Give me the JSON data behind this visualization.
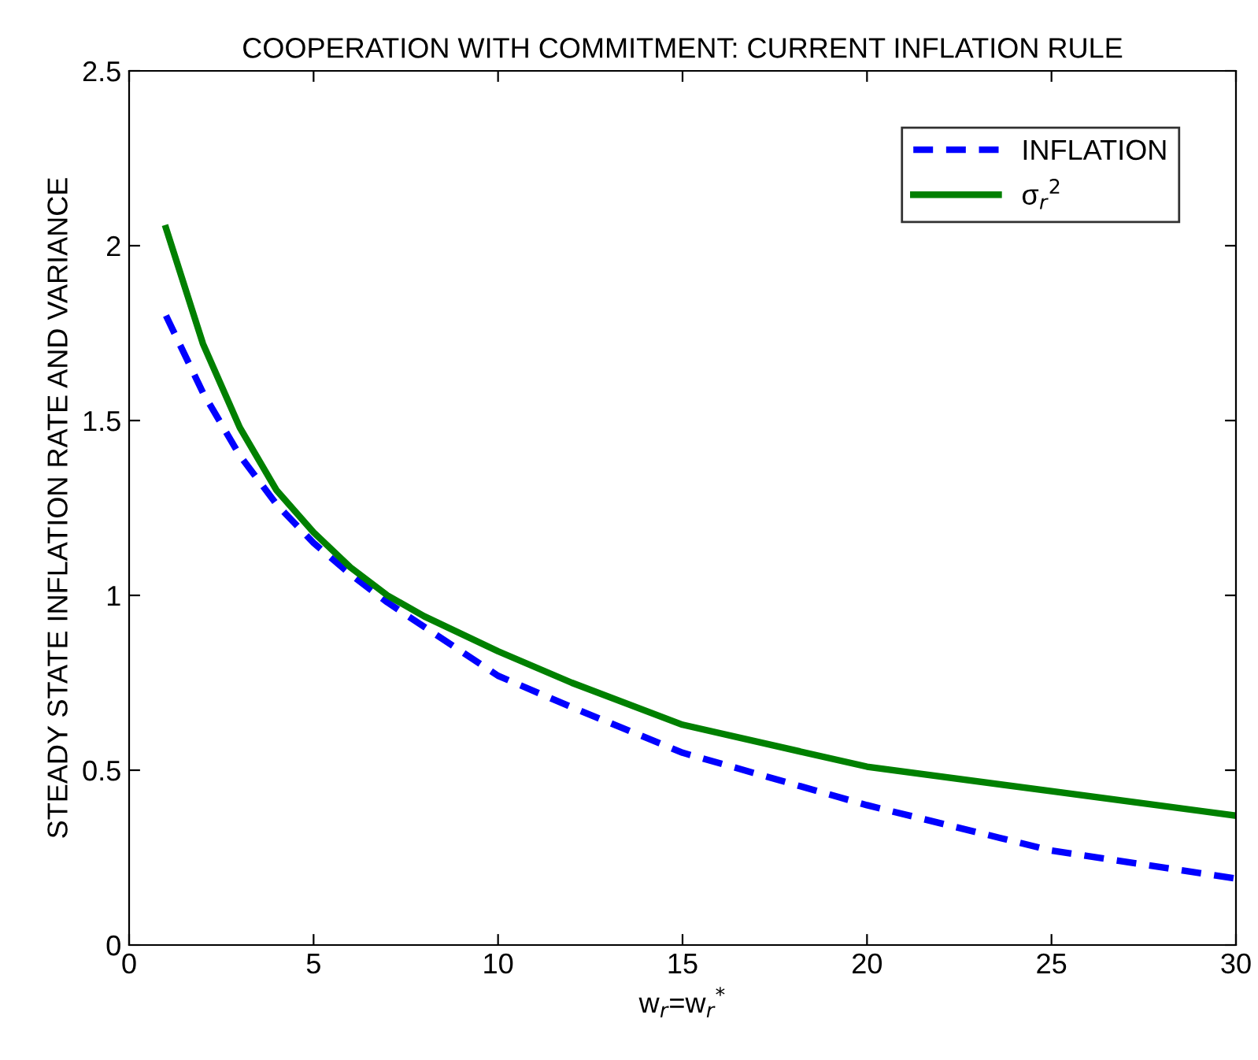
{
  "chart_data": {
    "type": "line",
    "title": "COOPERATION WITH COMMITMENT: CURRENT INFLATION RULE",
    "xlabel": "w$_{r}$=w$_{r}$$^{*}$",
    "ylabel": "STEADY STATE INFLATION RATE AND VARIANCE",
    "x": [
      1,
      2,
      3,
      4,
      5,
      6,
      7,
      8,
      10,
      12,
      15,
      20,
      25,
      30
    ],
    "series": [
      {
        "name": "INFLATION",
        "color": "#0000ff",
        "line_style": "dashed",
        "values": [
          1.8,
          1.58,
          1.4,
          1.26,
          1.15,
          1.06,
          0.98,
          0.91,
          0.77,
          0.68,
          0.55,
          0.4,
          0.27,
          0.19
        ]
      },
      {
        "name": "σ$_{r}$$^{2}$",
        "color": "#008000",
        "line_style": "solid",
        "values": [
          2.05,
          1.72,
          1.48,
          1.3,
          1.18,
          1.08,
          1.0,
          0.94,
          0.84,
          0.75,
          0.63,
          0.51,
          0.44,
          0.37
        ]
      }
    ],
    "xlim": [
      0,
      30
    ],
    "xticks": [
      0,
      5,
      10,
      15,
      20,
      25,
      30
    ],
    "ylim": [
      0,
      2.5
    ],
    "yticks": [
      0,
      0.5,
      1,
      1.5,
      2,
      2.5
    ],
    "legend": "top right",
    "marker": "none"
  }
}
